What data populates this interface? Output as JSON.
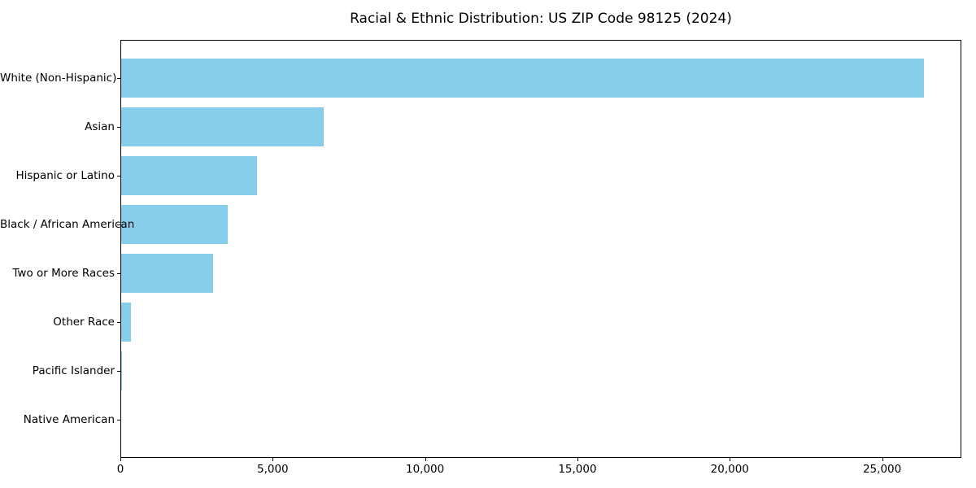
{
  "title": "Racial & Ethnic Distribution: US ZIP Code 98125 (2024)",
  "colors": {
    "bar_fill": "#87CEEB",
    "axis": "#000000",
    "background": "#ffffff"
  },
  "chart_data": {
    "type": "bar",
    "orientation": "horizontal",
    "title": "Racial & Ethnic Distribution: US ZIP Code 98125 (2024)",
    "xlabel": "",
    "ylabel": "",
    "categories": [
      "White (Non-Hispanic)",
      "Asian",
      "Hispanic or Latino",
      "Black / African American",
      "Two or More Races",
      "Other Race",
      "Pacific Islander",
      "Native American"
    ],
    "values": [
      26360,
      6680,
      4480,
      3520,
      3050,
      340,
      45,
      25
    ],
    "xlim": [
      0,
      27600
    ],
    "x_ticks": [
      0,
      5000,
      10000,
      15000,
      20000,
      25000
    ],
    "x_tick_labels": [
      "0",
      "5,000",
      "10,000",
      "15,000",
      "20,000",
      "25,000"
    ],
    "grid": false,
    "legend": null,
    "bar_color": "#87CEEB"
  }
}
